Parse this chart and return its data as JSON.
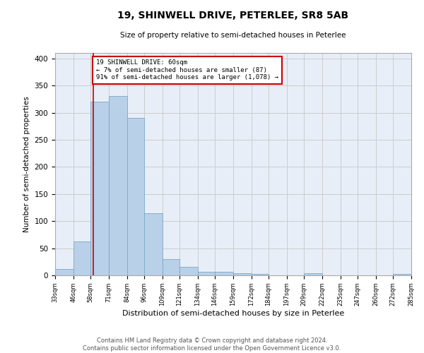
{
  "title": "19, SHINWELL DRIVE, PETERLEE, SR8 5AB",
  "subtitle": "Size of property relative to semi-detached houses in Peterlee",
  "xlabel": "Distribution of semi-detached houses by size in Peterlee",
  "ylabel": "Number of semi-detached properties",
  "footer_line1": "Contains HM Land Registry data © Crown copyright and database right 2024.",
  "footer_line2": "Contains public sector information licensed under the Open Government Licence v3.0.",
  "bar_left_edges": [
    33,
    46,
    58,
    71,
    84,
    96,
    109,
    121,
    134,
    146,
    159,
    172,
    184,
    197,
    209,
    222,
    235,
    247,
    260,
    272
  ],
  "bar_widths": [
    13,
    12,
    13,
    13,
    12,
    13,
    12,
    13,
    12,
    13,
    13,
    12,
    13,
    12,
    13,
    13,
    12,
    13,
    12,
    13
  ],
  "bar_heights": [
    12,
    62,
    320,
    330,
    290,
    115,
    30,
    15,
    7,
    7,
    4,
    3,
    0,
    0,
    4,
    0,
    0,
    0,
    0,
    3
  ],
  "tick_labels": [
    "33sqm",
    "46sqm",
    "58sqm",
    "71sqm",
    "84sqm",
    "96sqm",
    "109sqm",
    "121sqm",
    "134sqm",
    "146sqm",
    "159sqm",
    "172sqm",
    "184sqm",
    "197sqm",
    "209sqm",
    "222sqm",
    "235sqm",
    "247sqm",
    "260sqm",
    "272sqm",
    "285sqm"
  ],
  "tick_positions": [
    33,
    46,
    58,
    71,
    84,
    96,
    109,
    121,
    134,
    146,
    159,
    172,
    184,
    197,
    209,
    222,
    235,
    247,
    260,
    272,
    285
  ],
  "bar_color": "#b8d0e8",
  "bar_edge_color": "#7aaac8",
  "grid_color": "#cccccc",
  "property_line_x": 60,
  "property_line_color": "#cc0000",
  "annotation_line1": "19 SHINWELL DRIVE: 60sqm",
  "annotation_line2": "← 7% of semi-detached houses are smaller (87)",
  "annotation_line3": "91% of semi-detached houses are larger (1,078) →",
  "ylim": [
    0,
    410
  ],
  "xlim": [
    33,
    285
  ],
  "yticks": [
    0,
    50,
    100,
    150,
    200,
    250,
    300,
    350,
    400
  ],
  "background_color": "#e8eef8"
}
